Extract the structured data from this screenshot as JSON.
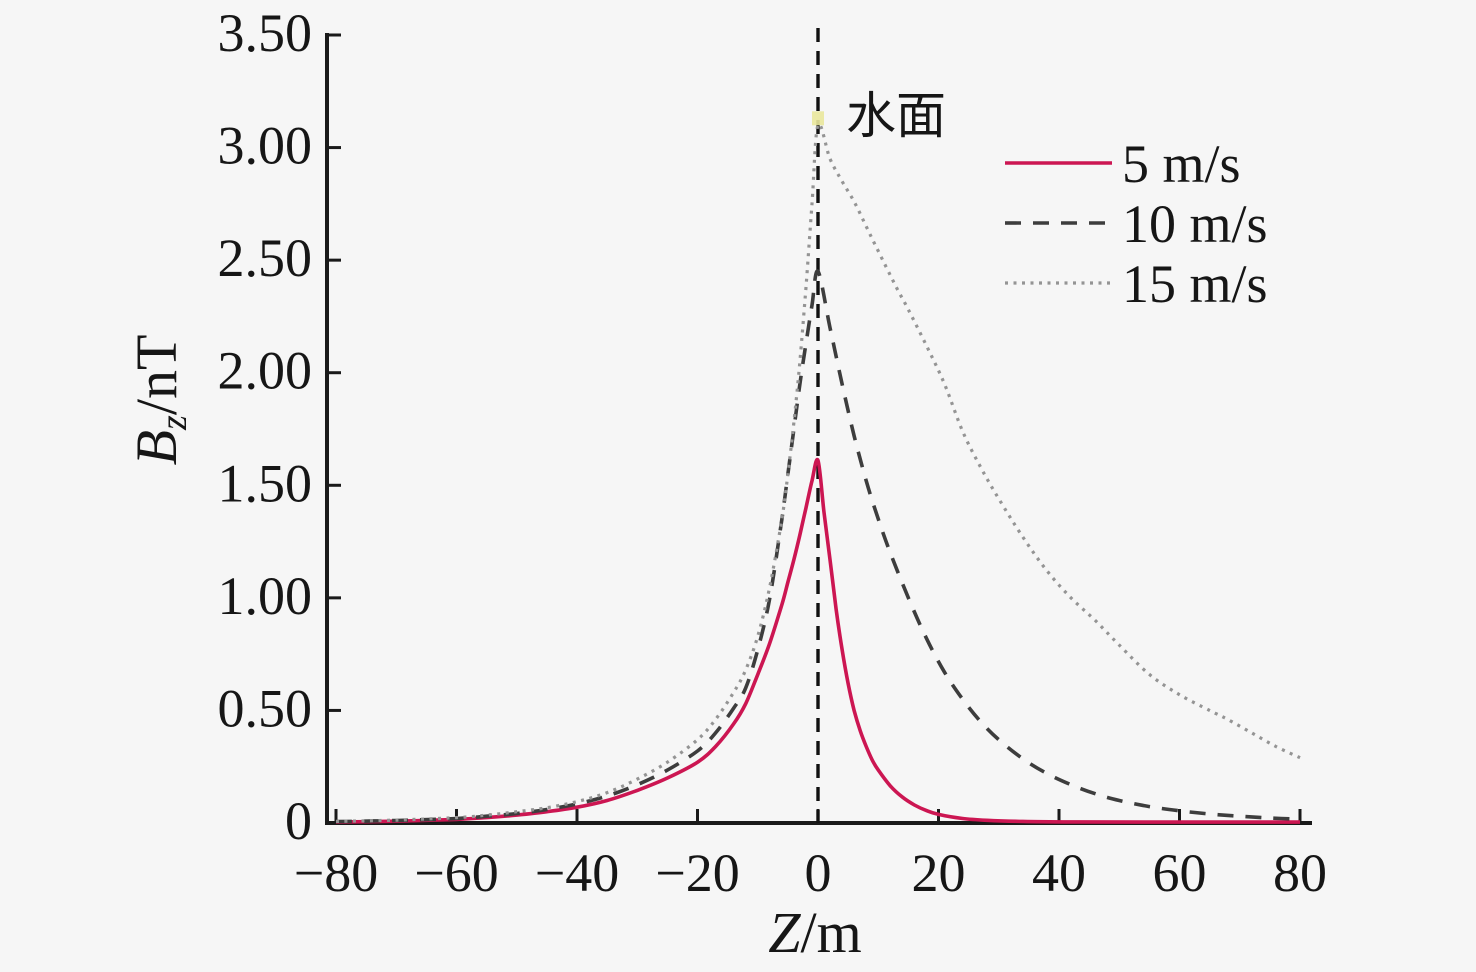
{
  "figure": {
    "background_color": "#f6f6f6",
    "text_color": "#161616"
  },
  "chart_data": {
    "type": "line",
    "title": "",
    "xlabel": "Z/m",
    "ylabel": "Bz/nT",
    "xlabel_parts": {
      "var": "Z",
      "rest": "/m"
    },
    "ylabel_parts": {
      "var": "B",
      "sub": "z",
      "rest": "/nT"
    },
    "xlim": [
      -80,
      80
    ],
    "ylim": [
      0,
      3.5
    ],
    "grid": false,
    "legend_position": "top-right",
    "x_ticks": [
      {
        "v": -80,
        "label": "−80"
      },
      {
        "v": -60,
        "label": "−60"
      },
      {
        "v": -40,
        "label": "−40"
      },
      {
        "v": -20,
        "label": "−20"
      },
      {
        "v": 0,
        "label": "0"
      },
      {
        "v": 20,
        "label": "20"
      },
      {
        "v": 40,
        "label": "40"
      },
      {
        "v": 60,
        "label": "60"
      },
      {
        "v": 80,
        "label": "80"
      }
    ],
    "y_ticks": [
      {
        "v": 3.5,
        "label": "3.50"
      },
      {
        "v": 3.0,
        "label": "3.00"
      },
      {
        "v": 2.5,
        "label": "2.50"
      },
      {
        "v": 2.0,
        "label": "2.00"
      },
      {
        "v": 1.5,
        "label": "1.50"
      },
      {
        "v": 1.0,
        "label": "1.00"
      },
      {
        "v": 0.5,
        "label": "0.50"
      },
      {
        "v": 0,
        "label": "0"
      }
    ],
    "reference_line": {
      "at_x": 0,
      "style": "dashed",
      "color": "#111111",
      "label": "水面"
    },
    "annotation": {
      "text": "水面",
      "at_x": 0,
      "at_y": 3.3
    },
    "peak_artifact": {
      "x": 0,
      "y": 3.13,
      "color": "#eae89c"
    },
    "series": [
      {
        "name": "5 m/s",
        "style": "solid",
        "color": "#cc1652",
        "peak": {
          "x": 0,
          "y": 1.61
        },
        "points": [
          [
            -80,
            0.004
          ],
          [
            -70,
            0.008
          ],
          [
            -60,
            0.016
          ],
          [
            -55,
            0.024
          ],
          [
            -50,
            0.035
          ],
          [
            -45,
            0.05
          ],
          [
            -40,
            0.07
          ],
          [
            -35,
            0.1
          ],
          [
            -30,
            0.145
          ],
          [
            -25,
            0.2
          ],
          [
            -20,
            0.27
          ],
          [
            -17,
            0.34
          ],
          [
            -14,
            0.44
          ],
          [
            -12,
            0.53
          ],
          [
            -10,
            0.66
          ],
          [
            -8,
            0.8
          ],
          [
            -6,
            0.97
          ],
          [
            -5,
            1.07
          ],
          [
            -4,
            1.17
          ],
          [
            -3,
            1.28
          ],
          [
            -2,
            1.4
          ],
          [
            -1,
            1.52
          ],
          [
            0,
            1.61
          ],
          [
            1,
            1.38
          ],
          [
            2,
            1.17
          ],
          [
            3,
            0.95
          ],
          [
            4,
            0.77
          ],
          [
            5,
            0.62
          ],
          [
            6,
            0.5
          ],
          [
            7,
            0.41
          ],
          [
            8,
            0.34
          ],
          [
            9,
            0.28
          ],
          [
            10,
            0.235
          ],
          [
            12,
            0.165
          ],
          [
            14,
            0.115
          ],
          [
            16,
            0.08
          ],
          [
            18,
            0.055
          ],
          [
            20,
            0.038
          ],
          [
            24,
            0.02
          ],
          [
            28,
            0.012
          ],
          [
            34,
            0.007
          ],
          [
            42,
            0.005
          ],
          [
            55,
            0.004
          ],
          [
            80,
            0.004
          ]
        ]
      },
      {
        "name": "10 m/s",
        "style": "dashed",
        "color": "#3d3d3d",
        "peak": {
          "x": 0,
          "y": 2.45
        },
        "points": [
          [
            -80,
            0.006
          ],
          [
            -70,
            0.011
          ],
          [
            -60,
            0.02
          ],
          [
            -55,
            0.03
          ],
          [
            -50,
            0.042
          ],
          [
            -45,
            0.06
          ],
          [
            -40,
            0.085
          ],
          [
            -35,
            0.12
          ],
          [
            -30,
            0.17
          ],
          [
            -25,
            0.235
          ],
          [
            -20,
            0.32
          ],
          [
            -17,
            0.4
          ],
          [
            -14,
            0.51
          ],
          [
            -12,
            0.6
          ],
          [
            -10,
            0.77
          ],
          [
            -8,
            1.0
          ],
          [
            -6,
            1.35
          ],
          [
            -5,
            1.55
          ],
          [
            -4,
            1.75
          ],
          [
            -3,
            1.95
          ],
          [
            -2,
            2.13
          ],
          [
            -1,
            2.3
          ],
          [
            0,
            2.45
          ],
          [
            2,
            2.2
          ],
          [
            4,
            1.95
          ],
          [
            6,
            1.72
          ],
          [
            8,
            1.52
          ],
          [
            10,
            1.35
          ],
          [
            12,
            1.2
          ],
          [
            15,
            1.0
          ],
          [
            18,
            0.82
          ],
          [
            21,
            0.67
          ],
          [
            24,
            0.55
          ],
          [
            27,
            0.45
          ],
          [
            30,
            0.37
          ],
          [
            34,
            0.285
          ],
          [
            38,
            0.22
          ],
          [
            42,
            0.17
          ],
          [
            46,
            0.13
          ],
          [
            50,
            0.1
          ],
          [
            55,
            0.073
          ],
          [
            60,
            0.054
          ],
          [
            65,
            0.04
          ],
          [
            70,
            0.03
          ],
          [
            75,
            0.022
          ],
          [
            80,
            0.017
          ]
        ]
      },
      {
        "name": "15 m/s",
        "style": "dotted",
        "color": "#949494",
        "peak": {
          "x": 0,
          "y": 3.1
        },
        "points": [
          [
            -80,
            0.007
          ],
          [
            -70,
            0.013
          ],
          [
            -60,
            0.024
          ],
          [
            -55,
            0.035
          ],
          [
            -50,
            0.05
          ],
          [
            -45,
            0.068
          ],
          [
            -40,
            0.095
          ],
          [
            -35,
            0.135
          ],
          [
            -30,
            0.195
          ],
          [
            -25,
            0.27
          ],
          [
            -20,
            0.37
          ],
          [
            -17,
            0.46
          ],
          [
            -14,
            0.58
          ],
          [
            -12,
            0.68
          ],
          [
            -10,
            0.83
          ],
          [
            -8,
            1.05
          ],
          [
            -6,
            1.35
          ],
          [
            -5,
            1.55
          ],
          [
            -4,
            1.78
          ],
          [
            -3,
            2.05
          ],
          [
            -2,
            2.38
          ],
          [
            -1,
            2.75
          ],
          [
            0,
            3.1
          ],
          [
            2,
            2.95
          ],
          [
            4,
            2.85
          ],
          [
            6,
            2.76
          ],
          [
            8,
            2.65
          ],
          [
            10,
            2.54
          ],
          [
            13,
            2.38
          ],
          [
            15,
            2.28
          ],
          [
            18,
            2.12
          ],
          [
            21,
            1.95
          ],
          [
            24,
            1.74
          ],
          [
            27,
            1.58
          ],
          [
            30,
            1.44
          ],
          [
            34,
            1.27
          ],
          [
            38,
            1.12
          ],
          [
            42,
            1.0
          ],
          [
            46,
            0.9
          ],
          [
            50,
            0.79
          ],
          [
            55,
            0.66
          ],
          [
            60,
            0.57
          ],
          [
            65,
            0.5
          ],
          [
            68,
            0.46
          ],
          [
            72,
            0.4
          ],
          [
            76,
            0.34
          ],
          [
            80,
            0.29
          ]
        ]
      }
    ]
  },
  "legend": {
    "items": [
      "5 m/s",
      "10 m/s",
      "15 m/s"
    ]
  }
}
